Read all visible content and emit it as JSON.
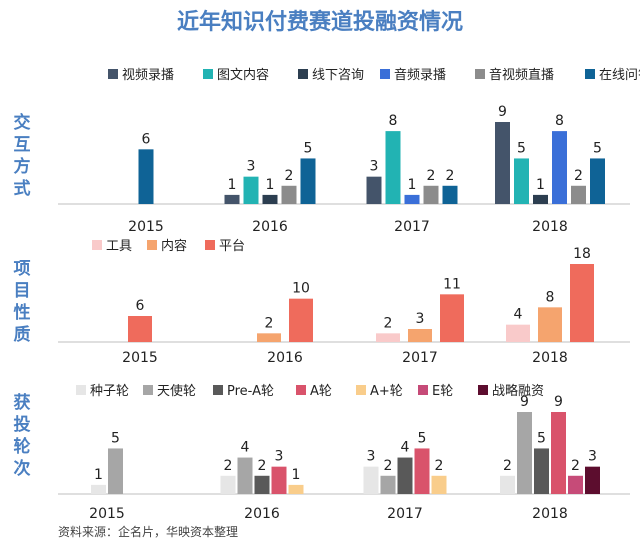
{
  "title": "近年知识付费赛道投融资情况",
  "source": "资料来源：企名片，华映资本整理",
  "chart_data": [
    {
      "type": "bar",
      "panel": "interaction",
      "side_label": "交互方式",
      "categories": [
        "2015",
        "2016",
        "2017",
        "2018"
      ],
      "series": [
        {
          "name": "视频录播",
          "color": "#44546a",
          "values": [
            null,
            1,
            3,
            9
          ]
        },
        {
          "name": "图文内容",
          "color": "#22b3b3",
          "values": [
            null,
            3,
            8,
            5
          ]
        },
        {
          "name": "线下咨询",
          "color": "#2c3e50",
          "values": [
            null,
            1,
            null,
            1
          ]
        },
        {
          "name": "音频录播",
          "color": "#3a6fd8",
          "values": [
            null,
            null,
            1,
            8
          ]
        },
        {
          "name": "音视频直播",
          "color": "#8c8c8c",
          "values": [
            null,
            2,
            2,
            2
          ]
        },
        {
          "name": "在线问答",
          "color": "#0f6396",
          "values": [
            6,
            5,
            2,
            5
          ]
        }
      ],
      "ylim": [
        0,
        9
      ]
    },
    {
      "type": "bar",
      "panel": "project",
      "side_label": "项目性质",
      "categories": [
        "2015",
        "2016",
        "2017",
        "2018"
      ],
      "series": [
        {
          "name": "工具",
          "color": "#f9caca",
          "values": [
            null,
            null,
            2,
            4
          ]
        },
        {
          "name": "内容",
          "color": "#f5a46e",
          "values": [
            null,
            2,
            3,
            8
          ]
        },
        {
          "name": "平台",
          "color": "#ef6b5c",
          "values": [
            6,
            10,
            11,
            18
          ]
        }
      ],
      "ylim": [
        0,
        18
      ]
    },
    {
      "type": "bar",
      "panel": "round",
      "side_label": "获投轮次",
      "categories": [
        "2015",
        "2016",
        "2017",
        "2018"
      ],
      "series": [
        {
          "name": "种子轮",
          "color": "#e6e6e6",
          "values": [
            1,
            2,
            3,
            2
          ]
        },
        {
          "name": "天使轮",
          "color": "#a6a6a6",
          "values": [
            5,
            4,
            2,
            9
          ]
        },
        {
          "name": "Pre-A轮",
          "color": "#595959",
          "values": [
            null,
            2,
            4,
            5
          ]
        },
        {
          "name": "A轮",
          "color": "#d9536b",
          "values": [
            null,
            3,
            5,
            9
          ]
        },
        {
          "name": "A+轮",
          "color": "#f9cd8b",
          "values": [
            null,
            1,
            2,
            null
          ]
        },
        {
          "name": "E轮",
          "color": "#c64b78",
          "values": [
            null,
            null,
            null,
            2
          ]
        },
        {
          "name": "战略融资",
          "color": "#5c0d2e",
          "values": [
            null,
            null,
            null,
            3
          ]
        }
      ],
      "ylim": [
        0,
        9
      ]
    }
  ]
}
